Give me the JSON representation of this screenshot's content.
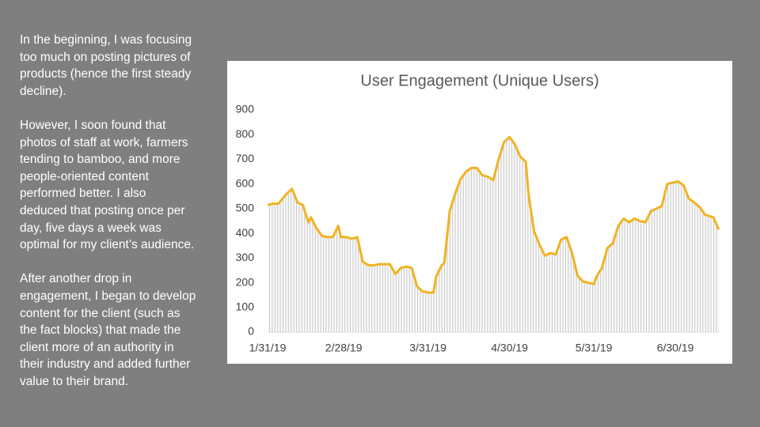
{
  "text": {
    "paragraphs": [
      [
        "In the beginning, I was focusing",
        "too much on posting pictures of",
        "products (hence the first steady",
        "decline)."
      ],
      [
        "However, I soon found that",
        "photos of staff at work, farmers",
        "tending to bamboo, and more",
        "people-oriented content",
        "performed better. I also",
        "deduced that posting once per",
        "day, five days a week was",
        "optimal for my client’s audience."
      ],
      [
        "After another drop in",
        "engagement, I began to develop",
        "content for the client (such as",
        "the fact blocks) that made the",
        "client more of an authority in",
        "their industry and added further",
        "value to their brand."
      ]
    ]
  },
  "chart_data": {
    "type": "line",
    "title": "User Engagement (Unique Users)",
    "color": "#f0b323",
    "x": [
      "1/31/19",
      "2/2/19",
      "2/4/19",
      "2/7/19",
      "2/9/19",
      "2/11/19",
      "2/13/19",
      "2/15/19",
      "2/16/19",
      "2/18/19",
      "2/20/19",
      "2/22/19",
      "2/24/19",
      "2/26/19",
      "2/27/19",
      "3/1/19",
      "3/3/19",
      "3/5/19",
      "3/7/19",
      "3/9/19",
      "3/11/19",
      "3/13/19",
      "3/15/19",
      "3/17/19",
      "3/19/19",
      "3/21/19",
      "3/23/19",
      "3/25/19",
      "3/27/19",
      "3/29/19",
      "3/31/19",
      "4/2/19",
      "4/3/19",
      "4/5/19",
      "4/6/19",
      "4/8/19",
      "4/10/19",
      "4/12/19",
      "4/14/19",
      "4/16/19",
      "4/18/19",
      "4/20/19",
      "4/22/19",
      "4/24/19",
      "4/26/19",
      "4/28/19",
      "4/30/19",
      "5/2/19",
      "5/4/19",
      "5/6/19",
      "5/7/19",
      "5/9/19",
      "5/11/19",
      "5/13/19",
      "5/15/19",
      "5/17/19",
      "5/19/19",
      "5/21/19",
      "5/23/19",
      "5/25/19",
      "5/27/19",
      "5/29/19",
      "5/31/19",
      "6/1/19",
      "6/3/19",
      "6/5/19",
      "6/7/19",
      "6/9/19",
      "6/11/19",
      "6/13/19",
      "6/15/19",
      "6/17/19",
      "6/19/19",
      "6/21/19",
      "6/23/19",
      "6/25/19",
      "6/27/19",
      "6/29/19",
      "7/1/19",
      "7/3/19",
      "7/5/19",
      "7/7/19",
      "7/9/19",
      "7/11/19",
      "7/14/19",
      "7/16/19"
    ],
    "values": [
      515,
      520,
      520,
      560,
      580,
      525,
      515,
      445,
      465,
      420,
      390,
      385,
      385,
      430,
      385,
      385,
      378,
      385,
      285,
      272,
      270,
      275,
      275,
      275,
      235,
      260,
      265,
      260,
      185,
      165,
      160,
      160,
      225,
      270,
      280,
      490,
      560,
      620,
      650,
      665,
      665,
      635,
      630,
      615,
      700,
      770,
      790,
      760,
      710,
      690,
      560,
      410,
      355,
      310,
      320,
      315,
      375,
      385,
      320,
      230,
      205,
      200,
      195,
      225,
      260,
      340,
      360,
      430,
      460,
      445,
      460,
      450,
      445,
      490,
      500,
      510,
      600,
      605,
      610,
      595,
      540,
      525,
      505,
      475,
      465,
      415
    ],
    "xlim": [
      "1/31/19",
      "7/16/19"
    ],
    "xticks": [
      "1/31/19",
      "2/28/19",
      "3/31/19",
      "4/30/19",
      "5/31/19",
      "6/30/19"
    ],
    "ylim": [
      0,
      900
    ],
    "yticks": [
      0,
      100,
      200,
      300,
      400,
      500,
      600,
      700,
      800,
      900
    ]
  }
}
